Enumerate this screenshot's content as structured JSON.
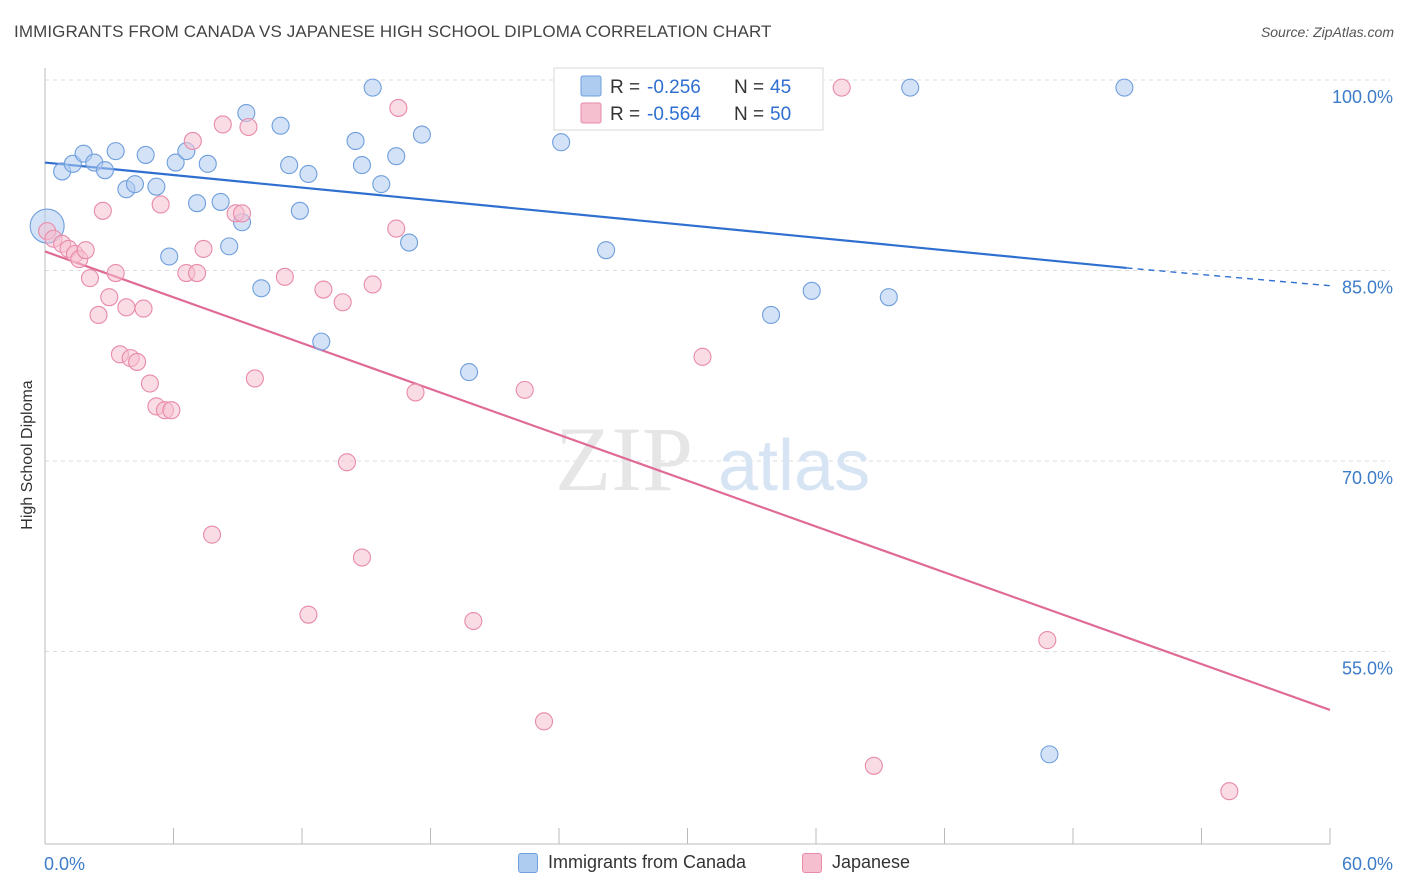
{
  "header": {
    "title": "IMMIGRANTS FROM CANADA VS JAPANESE HIGH SCHOOL DIPLOMA CORRELATION CHART",
    "source": "Source: ZipAtlas.com"
  },
  "watermark": {
    "zip": "ZIP",
    "atlas": "atlas"
  },
  "colors": {
    "blue_fill": "#aecbf0",
    "blue_stroke": "#6f9fdc",
    "blue_line": "#2f6fd0",
    "pink_fill": "#f6bfd0",
    "pink_stroke": "#e88aaa",
    "pink_line": "#e06a96",
    "axis_text": "#3d7cc9",
    "grid": "#dcdcdc"
  },
  "legend_box": {
    "rows": [
      {
        "r_label": "R = ",
        "r_value": "-0.256",
        "n_label": "N = ",
        "n_value": "45"
      },
      {
        "r_label": "R = ",
        "r_value": "-0.564",
        "n_label": "N = ",
        "n_value": "50"
      }
    ]
  },
  "chart_data": {
    "type": "scatter",
    "title": "IMMIGRANTS FROM CANADA VS JAPANESE HIGH SCHOOL DIPLOMA CORRELATION CHART",
    "xlabel": "",
    "ylabel": "High School Diploma",
    "xlim": [
      0,
      60
    ],
    "ylim": [
      40,
      100
    ],
    "x_tick_labels": [
      "0.0%",
      "60.0%"
    ],
    "y_ticks": [
      55,
      70,
      85,
      100
    ],
    "y_tick_labels": [
      "55.0%",
      "70.0%",
      "85.0%",
      "100.0%"
    ],
    "grid": true,
    "legend_position": "bottom",
    "series": [
      {
        "name": "Immigrants from Canada",
        "color": "#aecbf0",
        "r": -0.256,
        "n": 45,
        "trend": {
          "x0": 0,
          "y0": 93.5,
          "x1": 50.5,
          "y1": 85.2,
          "dashed_to_x": 60,
          "dashed_to_y": 83.8
        },
        "points": [
          [
            0.1,
            88.5
          ],
          [
            0.8,
            92.8
          ],
          [
            1.3,
            93.4
          ],
          [
            1.8,
            94.2
          ],
          [
            2.3,
            93.5
          ],
          [
            2.8,
            92.9
          ],
          [
            3.3,
            94.4
          ],
          [
            3.8,
            91.4
          ],
          [
            4.2,
            91.8
          ],
          [
            4.7,
            94.1
          ],
          [
            5.2,
            91.6
          ],
          [
            5.8,
            86.1
          ],
          [
            6.1,
            93.5
          ],
          [
            6.6,
            94.4
          ],
          [
            7.1,
            90.3
          ],
          [
            7.6,
            93.4
          ],
          [
            8.2,
            90.4
          ],
          [
            8.6,
            86.9
          ],
          [
            9.2,
            88.8
          ],
          [
            9.4,
            97.4
          ],
          [
            10.1,
            83.6
          ],
          [
            11.0,
            96.4
          ],
          [
            11.4,
            93.3
          ],
          [
            11.9,
            89.7
          ],
          [
            12.3,
            92.6
          ],
          [
            12.9,
            79.4
          ],
          [
            14.5,
            95.2
          ],
          [
            14.8,
            93.3
          ],
          [
            15.3,
            99.4
          ],
          [
            15.7,
            91.8
          ],
          [
            16.4,
            94.0
          ],
          [
            17.0,
            87.2
          ],
          [
            17.6,
            95.7
          ],
          [
            19.8,
            77.0
          ],
          [
            24.1,
            95.1
          ],
          [
            26.2,
            86.6
          ],
          [
            28.5,
            99.4
          ],
          [
            31.9,
            99.4
          ],
          [
            33.3,
            99.4
          ],
          [
            33.9,
            81.5
          ],
          [
            35.8,
            83.4
          ],
          [
            39.4,
            82.9
          ],
          [
            40.4,
            99.4
          ],
          [
            46.9,
            46.9
          ],
          [
            50.4,
            99.4
          ]
        ]
      },
      {
        "name": "Japanese",
        "color": "#f6bfd0",
        "r": -0.564,
        "n": 50,
        "trend": {
          "x0": 0,
          "y0": 86.5,
          "x1": 60,
          "y1": 50.4
        },
        "points": [
          [
            0.1,
            88.1
          ],
          [
            0.4,
            87.5
          ],
          [
            0.8,
            87.1
          ],
          [
            1.1,
            86.7
          ],
          [
            1.4,
            86.3
          ],
          [
            1.6,
            85.9
          ],
          [
            1.9,
            86.6
          ],
          [
            2.1,
            84.4
          ],
          [
            2.5,
            81.5
          ],
          [
            2.7,
            89.7
          ],
          [
            3.0,
            82.9
          ],
          [
            3.3,
            84.8
          ],
          [
            3.5,
            78.4
          ],
          [
            3.8,
            82.1
          ],
          [
            4.0,
            78.1
          ],
          [
            4.3,
            77.8
          ],
          [
            4.6,
            82.0
          ],
          [
            4.9,
            76.1
          ],
          [
            5.2,
            74.3
          ],
          [
            5.4,
            90.2
          ],
          [
            5.6,
            74.0
          ],
          [
            5.9,
            74.0
          ],
          [
            6.6,
            84.8
          ],
          [
            6.9,
            95.2
          ],
          [
            7.1,
            84.8
          ],
          [
            7.4,
            86.7
          ],
          [
            7.8,
            64.2
          ],
          [
            8.3,
            96.5
          ],
          [
            8.9,
            89.5
          ],
          [
            9.2,
            89.5
          ],
          [
            9.5,
            96.3
          ],
          [
            9.8,
            76.5
          ],
          [
            11.2,
            84.5
          ],
          [
            12.3,
            57.9
          ],
          [
            13.0,
            83.5
          ],
          [
            13.9,
            82.5
          ],
          [
            14.1,
            69.9
          ],
          [
            14.8,
            62.4
          ],
          [
            15.3,
            83.9
          ],
          [
            16.5,
            97.8
          ],
          [
            16.4,
            88.3
          ],
          [
            17.3,
            75.4
          ],
          [
            20.0,
            57.4
          ],
          [
            22.4,
            75.6
          ],
          [
            23.3,
            49.5
          ],
          [
            30.7,
            78.2
          ],
          [
            37.2,
            99.4
          ],
          [
            38.7,
            46.0
          ],
          [
            46.8,
            55.9
          ],
          [
            55.3,
            44.0
          ]
        ]
      }
    ]
  }
}
